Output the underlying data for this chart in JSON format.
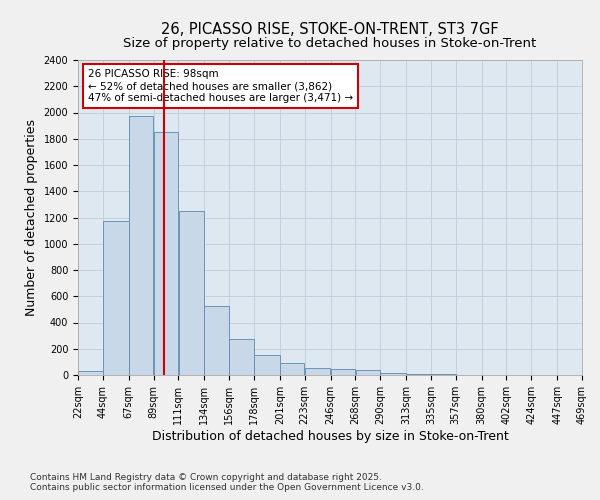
{
  "title1": "26, PICASSO RISE, STOKE-ON-TRENT, ST3 7GF",
  "title2": "Size of property relative to detached houses in Stoke-on-Trent",
  "xlabel": "Distribution of detached houses by size in Stoke-on-Trent",
  "ylabel": "Number of detached properties",
  "bar_left_edges": [
    22,
    44,
    67,
    89,
    111,
    134,
    156,
    178,
    201,
    223,
    246,
    268,
    290,
    313,
    335,
    357,
    380,
    402,
    424,
    447
  ],
  "bar_widths": [
    22,
    23,
    22,
    22,
    23,
    22,
    22,
    23,
    22,
    23,
    22,
    22,
    23,
    22,
    22,
    23,
    22,
    22,
    23,
    22
  ],
  "bar_heights": [
    30,
    1175,
    1975,
    1850,
    1250,
    525,
    275,
    150,
    90,
    50,
    45,
    40,
    15,
    5,
    5,
    3,
    2,
    1,
    0,
    0
  ],
  "tick_labels": [
    "22sqm",
    "44sqm",
    "67sqm",
    "89sqm",
    "111sqm",
    "134sqm",
    "156sqm",
    "178sqm",
    "201sqm",
    "223sqm",
    "246sqm",
    "268sqm",
    "290sqm",
    "313sqm",
    "335sqm",
    "357sqm",
    "380sqm",
    "402sqm",
    "424sqm",
    "447sqm",
    "469sqm"
  ],
  "tick_positions": [
    22,
    44,
    67,
    89,
    111,
    134,
    156,
    178,
    201,
    223,
    246,
    268,
    290,
    313,
    335,
    357,
    380,
    402,
    424,
    447,
    469
  ],
  "bar_color": "#c8d8e8",
  "bar_edge_color": "#5a8ab0",
  "vline_x": 98,
  "vline_color": "#cc0000",
  "annotation_text": "26 PICASSO RISE: 98sqm\n← 52% of detached houses are smaller (3,862)\n47% of semi-detached houses are larger (3,471) →",
  "annotation_box_color": "#ffffff",
  "annotation_box_edge": "#cc0000",
  "ylim": [
    0,
    2400
  ],
  "yticks": [
    0,
    200,
    400,
    600,
    800,
    1000,
    1200,
    1400,
    1600,
    1800,
    2000,
    2200,
    2400
  ],
  "grid_color": "#c0ccd8",
  "plot_bg_color": "#dde8f0",
  "fig_bg_color": "#f0f0f0",
  "footer_text": "Contains HM Land Registry data © Crown copyright and database right 2025.\nContains public sector information licensed under the Open Government Licence v3.0.",
  "title_fontsize": 10.5,
  "subtitle_fontsize": 9.5,
  "axis_label_fontsize": 9,
  "tick_fontsize": 7,
  "annotation_fontsize": 7.5,
  "footer_fontsize": 6.5
}
